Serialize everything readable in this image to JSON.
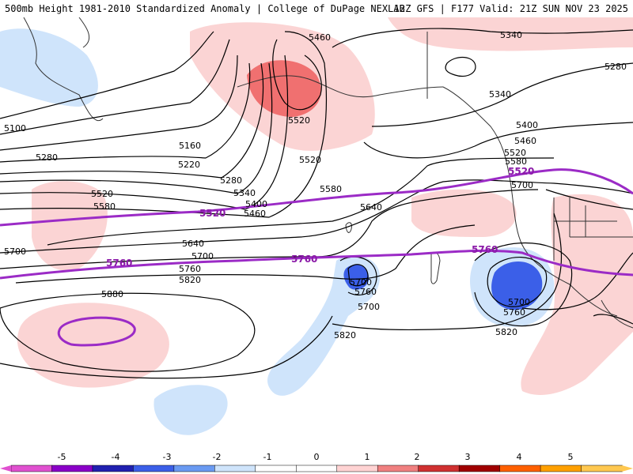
{
  "header": {
    "title": "500mb Height 1981-2010 Standardized Anomaly | College of DuPage NEXLAB",
    "run_info": "12Z GFS | F177 Valid: 21Z SUN NOV 23 2025"
  },
  "contours": {
    "labels": [
      "5460",
      "5340",
      "5280",
      "5520",
      "5340",
      "5100",
      "5160",
      "5280",
      "5220",
      "5280",
      "5340",
      "5400",
      "5460",
      "5520",
      "5400",
      "5460",
      "5520",
      "5580",
      "5520",
      "5580",
      "5580",
      "5640",
      "5700",
      "5640",
      "5700",
      "5700",
      "5760",
      "5820",
      "5880",
      "5700",
      "5760",
      "5820",
      "5700",
      "5760",
      "5820",
      "5700"
    ],
    "highlight_labels": [
      "5520",
      "5520",
      "5760",
      "5760",
      "5760"
    ]
  },
  "colorbar": {
    "ticks": [
      "-5",
      "-4",
      "-3",
      "-2",
      "-1",
      "0",
      "1",
      "2",
      "3",
      "4",
      "5"
    ],
    "colors": [
      "#e050d0",
      "#8a00c8",
      "#2020b0",
      "#3b5fe8",
      "#6a9af2",
      "#cfe4fb",
      "#ffffff",
      "#ffffff",
      "#ffd3d3",
      "#f08080",
      "#d03030",
      "#a00000",
      "#ff6000",
      "#ffa000",
      "#ffc850"
    ]
  },
  "legend_colors": {
    "pos_weak": "#fbd4d4",
    "pos_strong": "#f07070",
    "neg_weak": "#cfe4fb",
    "neg_mid": "#6a9af2",
    "neg_strong": "#3b5fe8",
    "highlight_contour": "#9b2bc6"
  }
}
